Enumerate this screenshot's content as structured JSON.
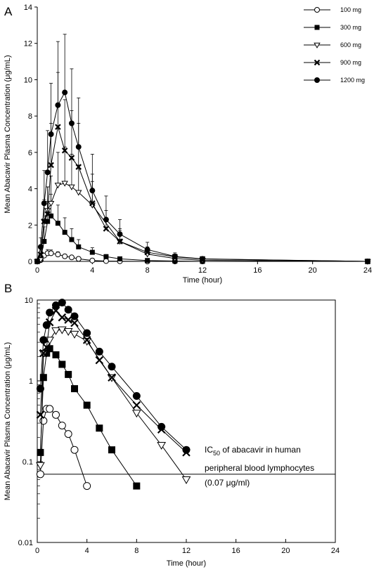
{
  "figure": {
    "panel_a_letter": "A",
    "panel_b_letter": "B"
  },
  "chart_data": [
    {
      "type": "line",
      "panel": "A",
      "xlabel": "Time (hour)",
      "ylabel": "Mean Abacavir Plasma Concentration (μg/mL)",
      "xlim": [
        0,
        24
      ],
      "ylim": [
        0,
        14
      ],
      "xticks": [
        "0",
        "4",
        "8",
        "12",
        "16",
        "20",
        "24"
      ],
      "yticks": [
        "0",
        "2",
        "4",
        "6",
        "8",
        "10",
        "12",
        "14"
      ],
      "legend_position": "top-right",
      "series": [
        {
          "name": "100 mg",
          "marker": "open-circle",
          "x": [
            0,
            0.25,
            0.5,
            0.75,
            1,
            1.5,
            2,
            2.5,
            3,
            4,
            5,
            6,
            8,
            10,
            12,
            24
          ],
          "y": [
            0,
            0.07,
            0.32,
            0.45,
            0.45,
            0.38,
            0.28,
            0.22,
            0.14,
            0.05,
            0.02,
            0.01,
            0,
            0,
            0,
            0
          ],
          "err": [
            0,
            0.03,
            0.12,
            0.2,
            0.18,
            0.15,
            0.1,
            0.08,
            0.06,
            0.03,
            0,
            0,
            0,
            0,
            0,
            0
          ]
        },
        {
          "name": "300 mg",
          "marker": "filled-square",
          "x": [
            0,
            0.25,
            0.5,
            0.75,
            1,
            1.5,
            2,
            2.5,
            3,
            4,
            5,
            6,
            8,
            10,
            12,
            24
          ],
          "y": [
            0,
            0.13,
            1.1,
            2.2,
            2.5,
            2.1,
            1.6,
            1.2,
            0.8,
            0.5,
            0.26,
            0.14,
            0.05,
            0.02,
            0,
            0
          ],
          "err": [
            0,
            0.1,
            0.8,
            1.1,
            1.2,
            1.0,
            0.8,
            0.6,
            0.4,
            0.25,
            0.12,
            0.06,
            0.03,
            0,
            0,
            0
          ]
        },
        {
          "name": "600 mg",
          "marker": "open-triangle",
          "x": [
            0,
            0.25,
            0.5,
            0.75,
            1,
            1.5,
            2,
            2.5,
            3,
            4,
            6,
            8,
            10,
            12,
            24
          ],
          "y": [
            0,
            0.09,
            2.2,
            2.8,
            3.2,
            4.2,
            4.3,
            4.1,
            3.8,
            3.1,
            1.1,
            0.4,
            0.16,
            0.06,
            0
          ],
          "err": [
            0,
            0.06,
            1.1,
            1.3,
            1.5,
            1.8,
            2.0,
            1.8,
            1.5,
            1.3,
            0.6,
            0.3,
            0.1,
            0.05,
            0
          ]
        },
        {
          "name": "900 mg",
          "marker": "cross",
          "x": [
            0,
            0.25,
            0.5,
            0.75,
            1,
            1.5,
            2,
            2.5,
            3,
            4,
            5,
            6,
            8,
            10,
            12,
            24
          ],
          "y": [
            0,
            0.38,
            2.2,
            2.6,
            5.3,
            7.4,
            6.1,
            5.7,
            5.2,
            3.2,
            1.8,
            1.1,
            0.5,
            0.25,
            0.13,
            0
          ],
          "err": [
            0,
            0.3,
            1.2,
            1.5,
            2.3,
            3.0,
            2.8,
            2.6,
            2.4,
            1.6,
            1.0,
            0.7,
            0.3,
            0.15,
            0.1,
            0
          ]
        },
        {
          "name": "1200 mg",
          "marker": "filled-circle",
          "x": [
            0,
            0.25,
            0.5,
            0.75,
            1,
            1.5,
            2,
            2.5,
            3,
            4,
            5,
            6,
            8,
            10,
            12,
            24
          ],
          "y": [
            0,
            0.8,
            3.2,
            4.9,
            7.0,
            8.6,
            9.3,
            7.6,
            6.3,
            3.9,
            2.3,
            1.5,
            0.65,
            0.27,
            0.14,
            0
          ],
          "err": [
            0,
            0.5,
            1.8,
            2.3,
            2.8,
            3.5,
            3.2,
            3.0,
            2.7,
            2.0,
            1.3,
            0.8,
            0.4,
            0.2,
            0.1,
            0
          ]
        }
      ]
    },
    {
      "type": "line",
      "panel": "B",
      "xlabel": "Time (hour)",
      "ylabel": "Mean Abacavir Plasma Concentration (μg/mL)",
      "xlim": [
        0,
        24
      ],
      "ylim": [
        0.01,
        10
      ],
      "yscale": "log",
      "xticks": [
        "0",
        "4",
        "8",
        "12",
        "16",
        "20",
        "24"
      ],
      "yticks": [
        "0.01",
        "0.1",
        "1",
        "10"
      ],
      "reference_line": {
        "y": 0.07,
        "label_line1_prefix": "IC",
        "label_line1_sub": "50",
        "label_line1_rest": " of abacavir in human",
        "label_line2": "peripheral blood lymphocytes",
        "label_line3": "(0.07 μg/ml)"
      },
      "series": [
        {
          "name": "100 mg",
          "marker": "open-circle",
          "x": [
            0.25,
            0.5,
            0.75,
            1,
            1.5,
            2,
            2.5,
            3,
            4
          ],
          "y": [
            0.07,
            0.32,
            0.45,
            0.45,
            0.38,
            0.28,
            0.22,
            0.14,
            0.05
          ]
        },
        {
          "name": "300 mg",
          "marker": "filled-square",
          "x": [
            0.25,
            0.5,
            0.75,
            1,
            1.5,
            2,
            2.5,
            3,
            4,
            5,
            6,
            8
          ],
          "y": [
            0.13,
            1.1,
            2.2,
            2.5,
            2.1,
            1.6,
            1.2,
            0.8,
            0.5,
            0.26,
            0.14,
            0.05
          ]
        },
        {
          "name": "600 mg",
          "marker": "open-triangle",
          "x": [
            0.25,
            0.5,
            0.75,
            1,
            1.5,
            2,
            2.5,
            3,
            4,
            6,
            8,
            10,
            12
          ],
          "y": [
            0.09,
            2.2,
            2.8,
            3.2,
            4.2,
            4.3,
            4.1,
            3.8,
            3.1,
            1.1,
            0.4,
            0.16,
            0.06
          ]
        },
        {
          "name": "900 mg",
          "marker": "cross",
          "x": [
            0.25,
            0.5,
            0.75,
            1,
            1.5,
            2,
            2.5,
            3,
            4,
            5,
            6,
            8,
            10,
            12
          ],
          "y": [
            0.38,
            2.2,
            2.6,
            5.3,
            7.4,
            6.1,
            5.7,
            5.2,
            3.2,
            1.8,
            1.1,
            0.5,
            0.25,
            0.13
          ]
        },
        {
          "name": "1200 mg",
          "marker": "filled-circle",
          "x": [
            0.25,
            0.5,
            0.75,
            1,
            1.5,
            2,
            2.5,
            3,
            4,
            5,
            6,
            8,
            10,
            12
          ],
          "y": [
            0.8,
            3.2,
            4.9,
            7.0,
            8.6,
            9.3,
            7.6,
            6.3,
            3.9,
            2.3,
            1.5,
            0.65,
            0.27,
            0.14
          ]
        }
      ]
    }
  ]
}
